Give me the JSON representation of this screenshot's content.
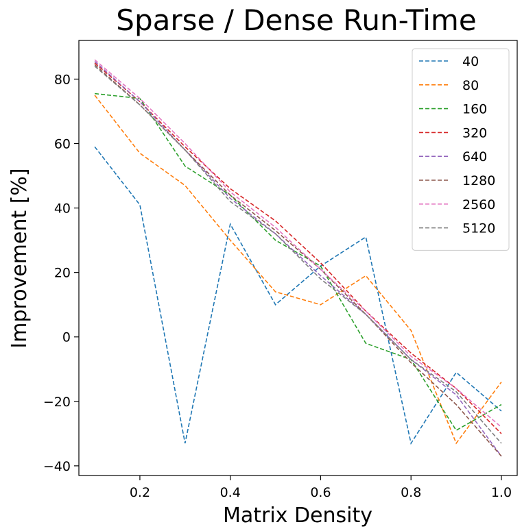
{
  "chart_data": {
    "type": "line",
    "title": "Sparse / Dense Run-Time",
    "xlabel": "Matrix Density",
    "ylabel": "Improvement [%]",
    "xlim": [
      0.065,
      1.035
    ],
    "ylim": [
      -43,
      92
    ],
    "x_ticks": [
      0.2,
      0.4,
      0.6,
      0.8,
      1.0
    ],
    "x_tick_labels": [
      "0.2",
      "0.4",
      "0.6",
      "0.8",
      "1.0"
    ],
    "y_ticks": [
      -40,
      -20,
      0,
      20,
      40,
      60,
      80
    ],
    "y_tick_labels": [
      "−40",
      "−20",
      "0",
      "20",
      "40",
      "60",
      "80"
    ],
    "line_style": "dashed",
    "grid": false,
    "legend_position": "upper right",
    "x": [
      0.1,
      0.2,
      0.3,
      0.4,
      0.5,
      0.6,
      0.7,
      0.8,
      0.9,
      1.0
    ],
    "series": [
      {
        "name": "40",
        "color": "#1f77b4",
        "values": [
          59,
          41,
          -33,
          35,
          10,
          22,
          31,
          -33,
          -11,
          -23
        ]
      },
      {
        "name": "80",
        "color": "#ff7f0e",
        "values": [
          75,
          57,
          47,
          30,
          14,
          10,
          19,
          2,
          -33,
          -14
        ]
      },
      {
        "name": "160",
        "color": "#2ca02c",
        "values": [
          75.5,
          74,
          53,
          44,
          30,
          22,
          -2,
          -7,
          -29,
          -21
        ]
      },
      {
        "name": "320",
        "color": "#d62728",
        "values": [
          85,
          73,
          59,
          46,
          36,
          23,
          8,
          -5,
          -16,
          -30
        ]
      },
      {
        "name": "640",
        "color": "#9467bd",
        "values": [
          85.5,
          73,
          58,
          43,
          32,
          19,
          7,
          -7,
          -18,
          -37
        ]
      },
      {
        "name": "1280",
        "color": "#8c564b",
        "values": [
          84.5,
          72,
          58,
          44,
          33,
          21,
          7,
          -8,
          -21,
          -37
        ]
      },
      {
        "name": "2560",
        "color": "#e377c2",
        "values": [
          86,
          74,
          60,
          45,
          34,
          21,
          8,
          -6,
          -16,
          -28
        ]
      },
      {
        "name": "5120",
        "color": "#7f7f7f",
        "values": [
          84,
          72,
          58,
          42,
          32,
          18,
          7,
          -7,
          -17,
          -33
        ]
      }
    ]
  }
}
